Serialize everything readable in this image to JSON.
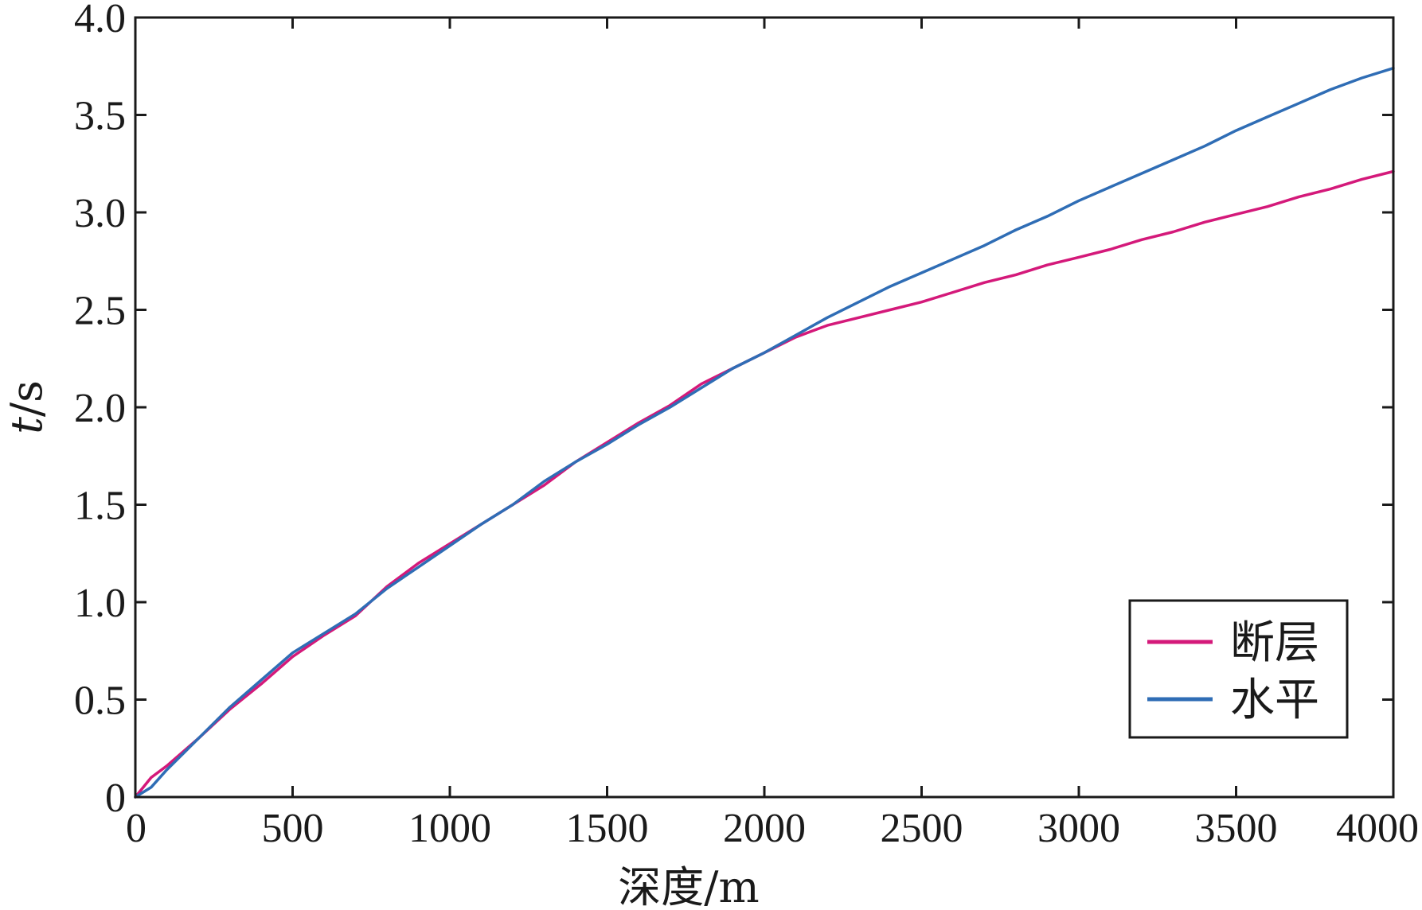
{
  "chart_data": {
    "type": "line",
    "xlabel": "深度/m",
    "ylabel_italic": "t",
    "ylabel_rest": "/s",
    "xlim": [
      0,
      4000
    ],
    "ylim": [
      0,
      4.0
    ],
    "x_ticks": [
      0,
      500,
      1000,
      1500,
      2000,
      2500,
      3000,
      3500,
      4000
    ],
    "x_tick_labels": [
      "0",
      "500",
      "1000",
      "1500",
      "2000",
      "2500",
      "3000",
      "3500",
      "4000"
    ],
    "y_ticks": [
      0,
      0.5,
      1.0,
      1.5,
      2.0,
      2.5,
      3.0,
      3.5,
      4.0
    ],
    "y_tick_labels": [
      "0",
      "0.5",
      "1.0",
      "1.5",
      "2.0",
      "2.5",
      "3.0",
      "3.5",
      "4.0"
    ],
    "grid": false,
    "legend_position": "bottom-right",
    "series": [
      {
        "name": "断层",
        "color": "#d4197a",
        "x": [
          0,
          50,
          100,
          200,
          300,
          400,
          500,
          600,
          700,
          800,
          900,
          1000,
          1100,
          1200,
          1300,
          1400,
          1500,
          1600,
          1700,
          1800,
          1900,
          2000,
          2100,
          2200,
          2300,
          2400,
          2500,
          2600,
          2700,
          2800,
          2900,
          3000,
          3100,
          3200,
          3300,
          3400,
          3500,
          3600,
          3700,
          3800,
          3900,
          4000
        ],
        "y": [
          0,
          0.1,
          0.16,
          0.3,
          0.45,
          0.58,
          0.72,
          0.83,
          0.93,
          1.08,
          1.2,
          1.3,
          1.4,
          1.5,
          1.6,
          1.72,
          1.82,
          1.92,
          2.01,
          2.12,
          2.2,
          2.28,
          2.36,
          2.42,
          2.46,
          2.5,
          2.54,
          2.59,
          2.64,
          2.68,
          2.73,
          2.77,
          2.81,
          2.86,
          2.9,
          2.95,
          2.99,
          3.03,
          3.08,
          3.12,
          3.17,
          3.21
        ]
      },
      {
        "name": "水平",
        "color": "#2f6db5",
        "x": [
          0,
          50,
          100,
          200,
          300,
          400,
          500,
          600,
          700,
          800,
          900,
          1000,
          1100,
          1200,
          1300,
          1400,
          1500,
          1600,
          1700,
          1800,
          1900,
          2000,
          2100,
          2200,
          2300,
          2400,
          2500,
          2600,
          2700,
          2800,
          2900,
          3000,
          3100,
          3200,
          3300,
          3400,
          3500,
          3600,
          3700,
          3800,
          3900,
          4000
        ],
        "y": [
          0,
          0.05,
          0.14,
          0.3,
          0.46,
          0.6,
          0.74,
          0.84,
          0.94,
          1.07,
          1.18,
          1.29,
          1.4,
          1.5,
          1.62,
          1.72,
          1.81,
          1.91,
          2.0,
          2.1,
          2.2,
          2.28,
          2.37,
          2.46,
          2.54,
          2.62,
          2.69,
          2.76,
          2.83,
          2.91,
          2.98,
          3.06,
          3.13,
          3.2,
          3.27,
          3.34,
          3.42,
          3.49,
          3.56,
          3.63,
          3.69,
          3.74
        ]
      }
    ]
  }
}
